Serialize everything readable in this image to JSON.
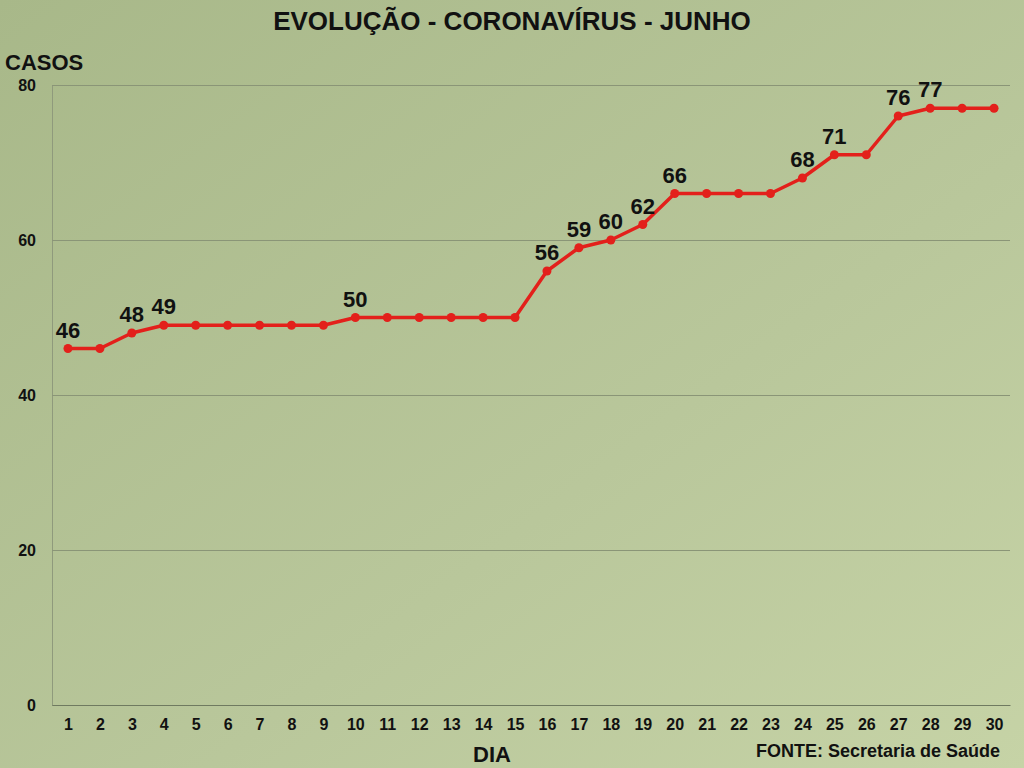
{
  "chart_data": {
    "type": "line",
    "title": "EVOLUÇÃO - CORONAVÍRUS - JUNHO",
    "x_label": "DIA",
    "y_label": "CASOS",
    "source": "FONTE: Secretaria de Saúde",
    "x": [
      1,
      2,
      3,
      4,
      5,
      6,
      7,
      8,
      9,
      10,
      11,
      12,
      13,
      14,
      15,
      16,
      17,
      18,
      19,
      20,
      21,
      22,
      23,
      24,
      25,
      26,
      27,
      28,
      29,
      30
    ],
    "values": [
      46,
      46,
      48,
      49,
      49,
      49,
      49,
      49,
      49,
      50,
      50,
      50,
      50,
      50,
      50,
      56,
      59,
      60,
      62,
      66,
      66,
      66,
      66,
      68,
      71,
      71,
      76,
      77,
      77,
      77
    ],
    "value_labels": [
      "46",
      null,
      "48",
      "49",
      null,
      null,
      null,
      null,
      null,
      "50",
      null,
      null,
      null,
      null,
      null,
      "56",
      "59",
      "60",
      "62",
      "66",
      null,
      null,
      null,
      "68",
      "71",
      null,
      "76",
      "77",
      null,
      null
    ],
    "color": "#e3201b",
    "marker": "circle",
    "line_style": "solid",
    "xlim": [
      0.5,
      30.5
    ],
    "xticks": [
      1,
      2,
      3,
      4,
      5,
      6,
      7,
      8,
      9,
      10,
      11,
      12,
      13,
      14,
      15,
      16,
      17,
      18,
      19,
      20,
      21,
      22,
      23,
      24,
      25,
      26,
      27,
      28,
      29,
      30
    ],
    "ylim": [
      0,
      80
    ],
    "yticks": [
      0,
      20,
      40,
      60,
      80
    ],
    "grid": true,
    "data_labels": true
  }
}
